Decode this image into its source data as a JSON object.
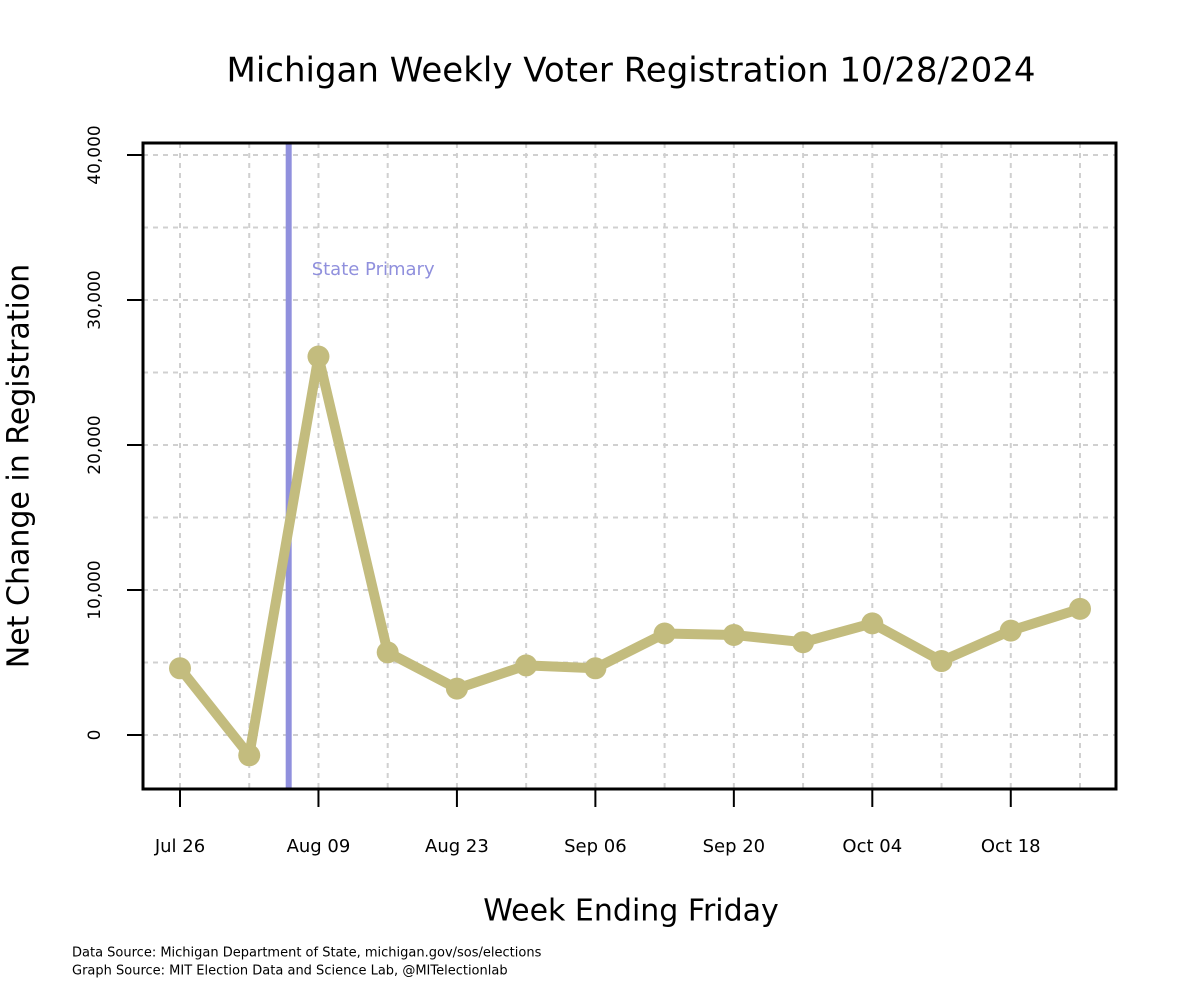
{
  "chart_data": {
    "type": "line",
    "title": "Michigan Weekly Voter Registration 10/28/2024",
    "x_label": "Week Ending Friday",
    "y_label": "Net Change in Registration",
    "categories": [
      "Jul 26",
      null,
      "Aug 09",
      null,
      "Aug 23",
      null,
      "Sep 06",
      null,
      "Sep 20",
      null,
      "Oct 04",
      null,
      "Oct 18",
      null
    ],
    "series": [
      {
        "color": "#c3bc7e",
        "values": [
          4600,
          -1400,
          26100,
          5700,
          3200,
          4800,
          4600,
          7000,
          6900,
          6400,
          7700,
          5100,
          7200,
          8700
        ]
      }
    ],
    "ylim": [
      -3724,
      40828
    ],
    "yticks": [
      {
        "value": 0,
        "label": "0"
      },
      {
        "value": 10000,
        "label": "10,000"
      },
      {
        "value": 20000,
        "label": "20,000"
      },
      {
        "value": 30000,
        "label": "30,000"
      },
      {
        "value": 40000,
        "label": "40,000"
      }
    ],
    "ygrid": [
      0,
      5000,
      10000,
      15000,
      20000,
      25000,
      30000,
      35000,
      40000
    ],
    "grid": true,
    "annotations": [
      {
        "text": "State Primary",
        "x": 1.57,
        "color": "#9090dd"
      }
    ],
    "sources": [
      "Data Source: Michigan Department of State, michigan.gov/sos/elections",
      "Graph Source: MIT Election Data and Science Lab, @MITelectionlab"
    ]
  }
}
